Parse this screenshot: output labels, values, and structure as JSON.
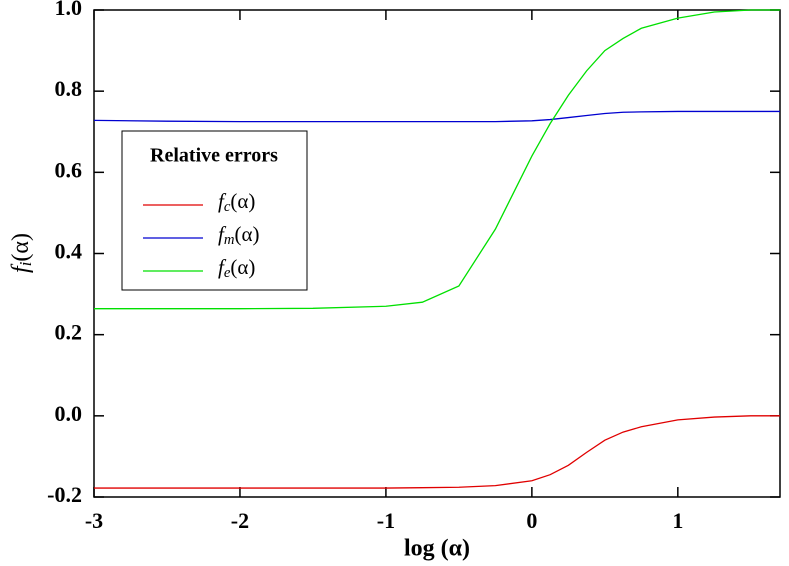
{
  "chart_data": {
    "type": "line",
    "x_label": "log (α)",
    "y_label": "fi(α)",
    "legend_title": "Relative errors",
    "x": [
      -3,
      -2.5,
      -2,
      -1.5,
      -1,
      -0.75,
      -0.5,
      -0.25,
      0,
      0.125,
      0.25,
      0.375,
      0.5,
      0.625,
      0.75,
      1,
      1.25,
      1.5,
      1.7
    ],
    "series": [
      {
        "name": "fc(α)",
        "color": "#e00000",
        "values": [
          -0.178,
          -0.178,
          -0.178,
          -0.178,
          -0.178,
          -0.177,
          -0.176,
          -0.172,
          -0.16,
          -0.145,
          -0.122,
          -0.09,
          -0.06,
          -0.04,
          -0.027,
          -0.01,
          -0.003,
          0,
          0
        ]
      },
      {
        "name": "fm(α)",
        "color": "#0000d0",
        "values": [
          0.728,
          0.726,
          0.725,
          0.725,
          0.725,
          0.725,
          0.725,
          0.725,
          0.727,
          0.73,
          0.735,
          0.74,
          0.745,
          0.748,
          0.749,
          0.75,
          0.75,
          0.75,
          0.75
        ]
      },
      {
        "name": "fe(α)",
        "color": "#00e000",
        "values": [
          0.264,
          0.264,
          0.264,
          0.265,
          0.27,
          0.28,
          0.32,
          0.46,
          0.64,
          0.72,
          0.79,
          0.85,
          0.9,
          0.93,
          0.955,
          0.98,
          0.995,
          1.0,
          1.0
        ]
      }
    ],
    "xlim": [
      -3,
      1.7
    ],
    "ylim": [
      -0.2,
      1.0
    ],
    "xticks": [
      -3,
      -2,
      -1,
      0,
      1
    ],
    "yticks": [
      {
        "value": 1,
        "label": "1.0"
      },
      0.8,
      0.6,
      0.4,
      0.2,
      {
        "value": 0,
        "label": "0.0"
      },
      -0.2
    ],
    "grid": false
  }
}
